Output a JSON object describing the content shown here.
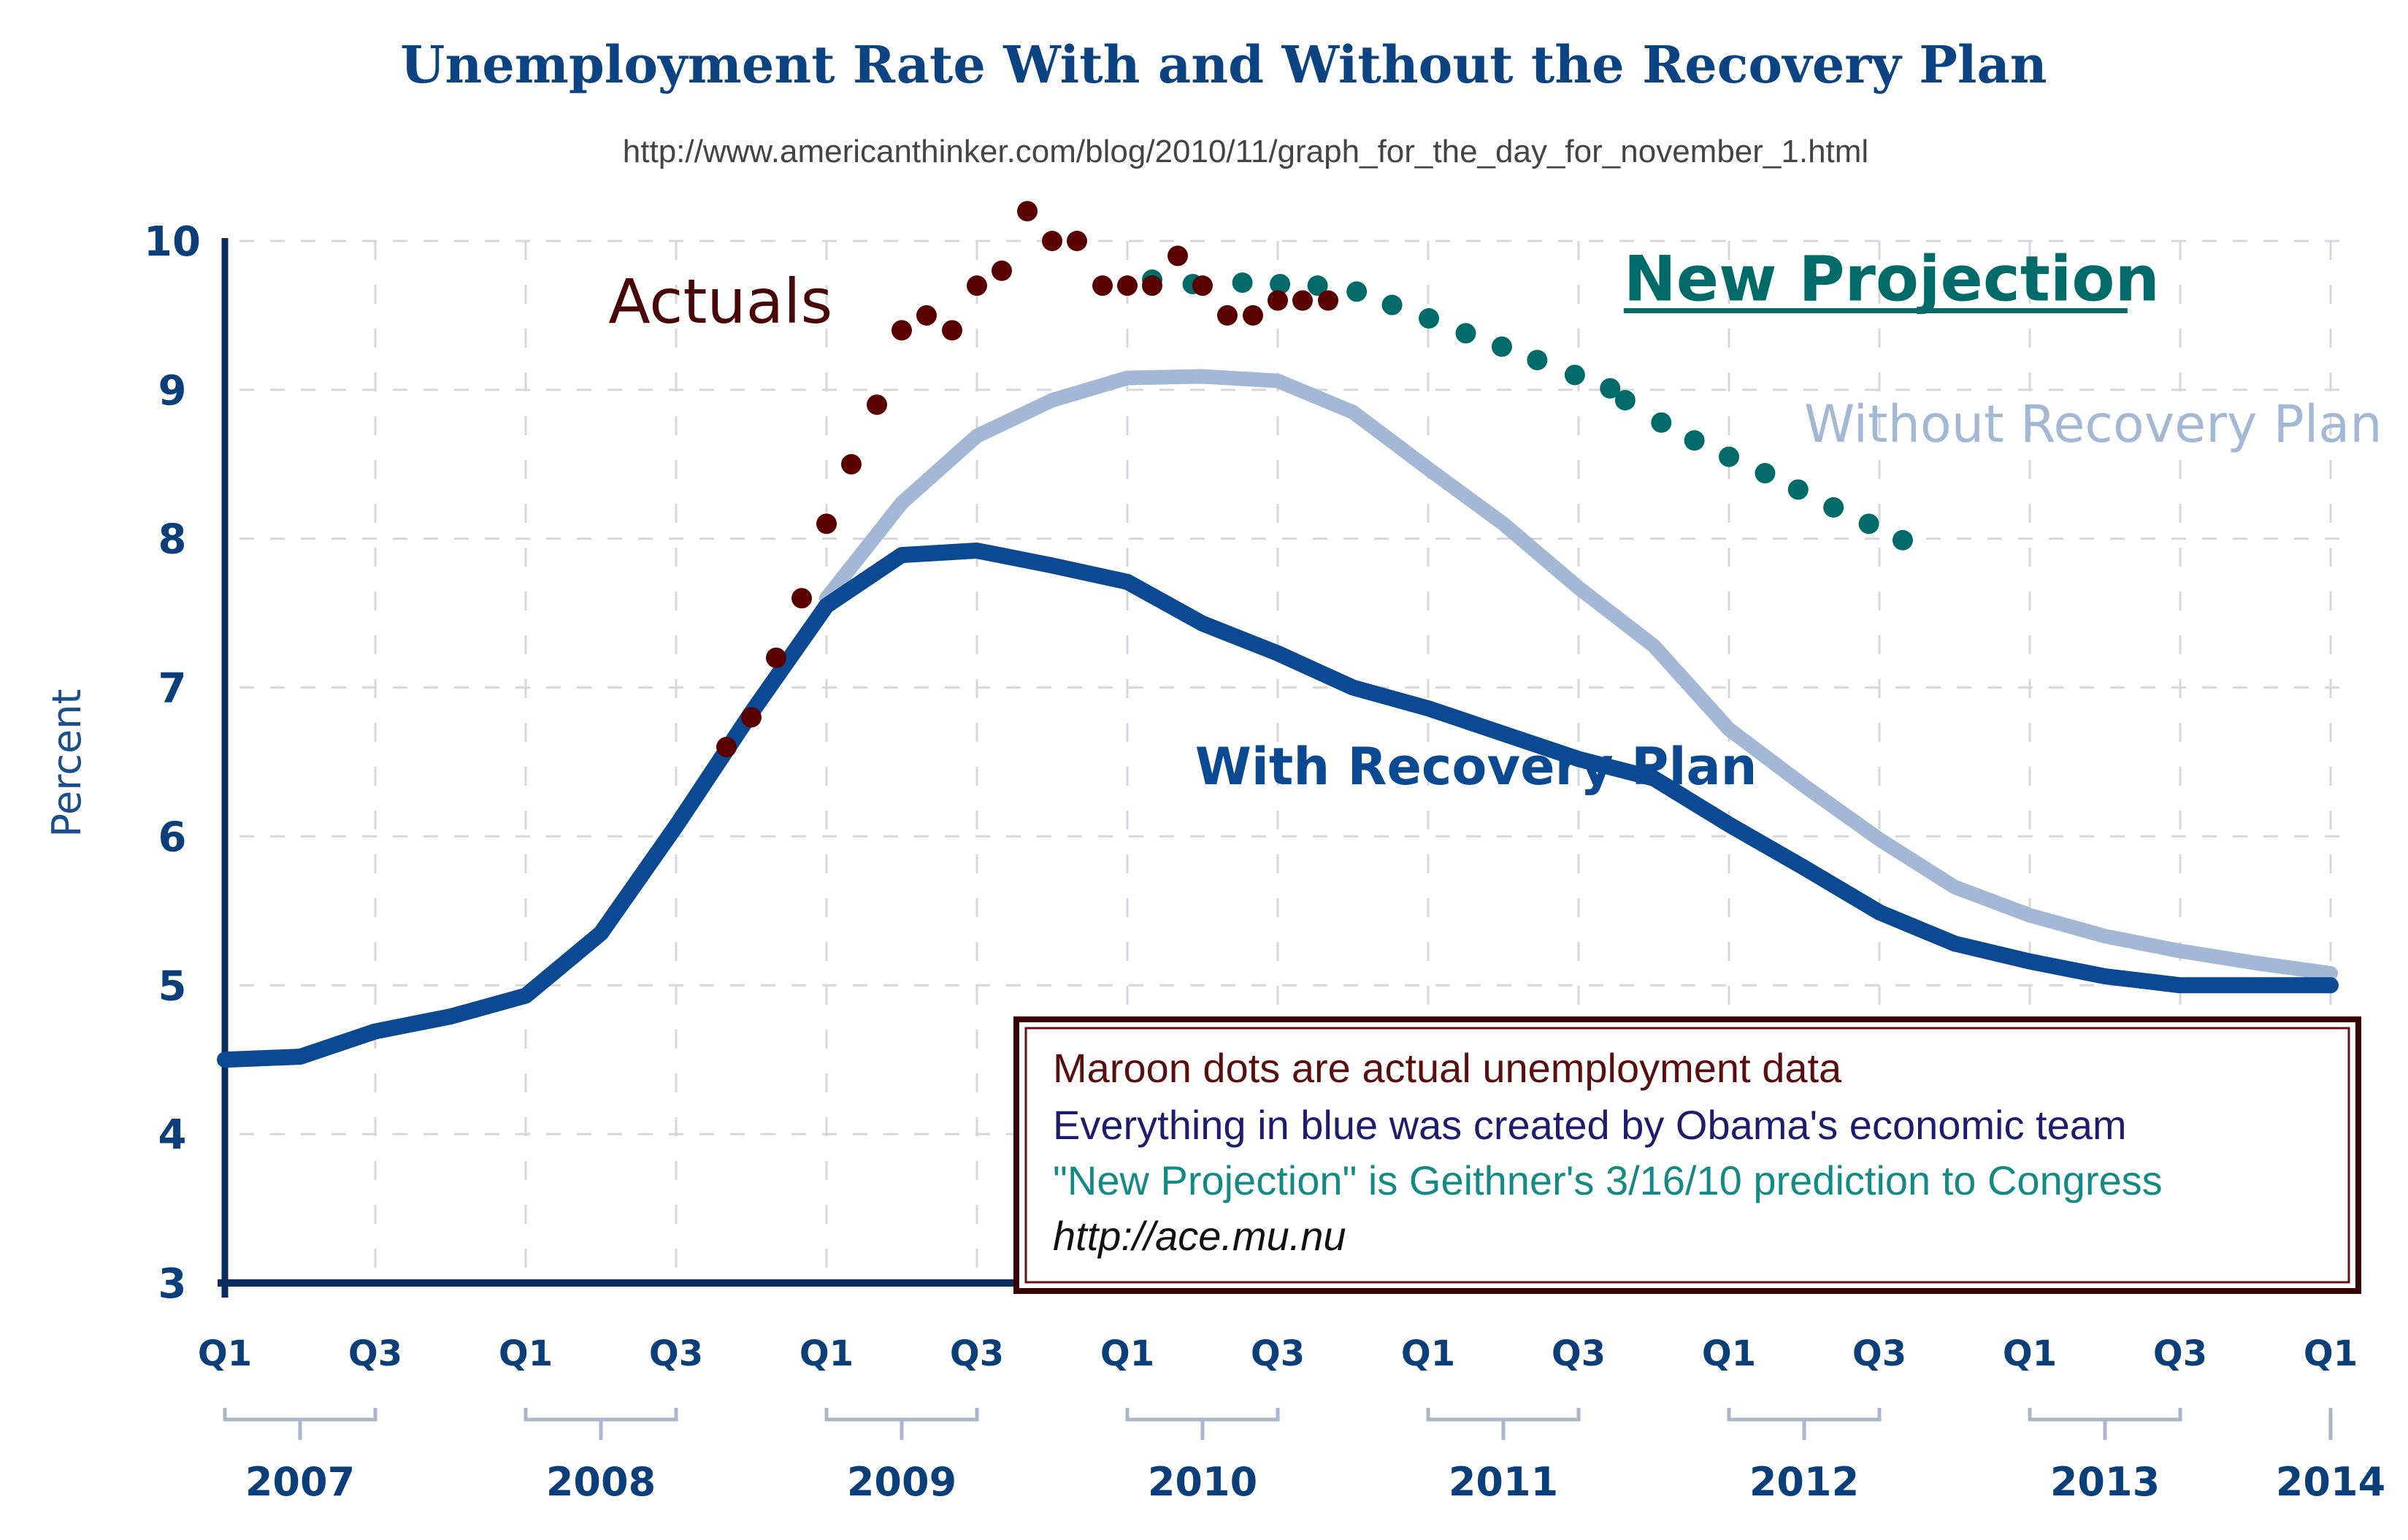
{
  "chart_data": {
    "type": "line",
    "title": "Unemployment Rate With and Without the Recovery Plan",
    "subtitle": "http://www.americanthinker.com/blog/2010/11/graph_for_the_day_for_november_1.html",
    "ylabel": "Percent",
    "xlabel": "",
    "ylim": [
      3,
      10
    ],
    "yticks": [
      3,
      4,
      5,
      6,
      7,
      8,
      9,
      10
    ],
    "x_unit": "quarters since Q1 2007",
    "xlim": [
      0,
      28
    ],
    "grid": true,
    "quarter_ticks": [
      {
        "q": 0,
        "label": "Q1"
      },
      {
        "q": 2,
        "label": "Q3"
      },
      {
        "q": 4,
        "label": "Q1"
      },
      {
        "q": 6,
        "label": "Q3"
      },
      {
        "q": 8,
        "label": "Q1"
      },
      {
        "q": 10,
        "label": "Q3"
      },
      {
        "q": 12,
        "label": "Q1"
      },
      {
        "q": 14,
        "label": "Q3"
      },
      {
        "q": 16,
        "label": "Q1"
      },
      {
        "q": 18,
        "label": "Q3"
      },
      {
        "q": 20,
        "label": "Q1"
      },
      {
        "q": 22,
        "label": "Q3"
      },
      {
        "q": 24,
        "label": "Q1"
      },
      {
        "q": 26,
        "label": "Q3"
      },
      {
        "q": 28,
        "label": "Q1"
      }
    ],
    "year_labels": [
      {
        "from": 0,
        "to": 2,
        "label": "2007"
      },
      {
        "from": 4,
        "to": 6,
        "label": "2008"
      },
      {
        "from": 8,
        "to": 10,
        "label": "2009"
      },
      {
        "from": 12,
        "to": 14,
        "label": "2010"
      },
      {
        "from": 16,
        "to": 18,
        "label": "2011"
      },
      {
        "from": 20,
        "to": 22,
        "label": "2012"
      },
      {
        "from": 24,
        "to": 26,
        "label": "2013"
      },
      {
        "from": 28,
        "to": 28,
        "label": "2014"
      }
    ],
    "series": [
      {
        "name": "Without Recovery Plan",
        "style": "line",
        "color": "#a3b8d4",
        "label": "Without Recovery Plan",
        "label_at": {
          "q": 21,
          "y": 8.65
        },
        "x": [
          8,
          9,
          10,
          11,
          12,
          13,
          14,
          15,
          16,
          17,
          18,
          19,
          20,
          21,
          22,
          23,
          24,
          25,
          26,
          27,
          28
        ],
        "values": [
          7.6,
          8.24,
          8.69,
          8.93,
          9.08,
          9.09,
          9.06,
          8.85,
          8.47,
          8.1,
          7.67,
          7.28,
          6.72,
          6.34,
          5.98,
          5.66,
          5.47,
          5.33,
          5.23,
          5.15,
          5.08
        ]
      },
      {
        "name": "With Recovery Plan",
        "style": "line",
        "color": "#0b4a92",
        "label": "With Recovery Plan",
        "label_at": {
          "q": 12.9,
          "y": 6.35
        },
        "x": [
          0,
          1,
          2,
          3,
          4,
          5,
          6,
          7,
          8,
          9,
          10,
          11,
          12,
          13,
          14,
          15,
          16,
          17,
          18,
          19,
          20,
          21,
          22,
          23,
          24,
          25,
          26,
          27,
          28
        ],
        "values": [
          4.5,
          4.52,
          4.69,
          4.79,
          4.93,
          5.35,
          6.07,
          6.83,
          7.55,
          7.89,
          7.92,
          7.82,
          7.71,
          7.43,
          7.23,
          7.0,
          6.86,
          6.69,
          6.52,
          6.39,
          6.08,
          5.79,
          5.49,
          5.28,
          5.16,
          5.06,
          5.0,
          5.0,
          5.0
        ]
      },
      {
        "name": "New Projection",
        "style": "dots",
        "color": "#006b68",
        "label": "New Projection",
        "label_at": {
          "q": 18.6,
          "y": 9.6
        },
        "x": [
          12.33,
          12.87,
          13.53,
          14.03,
          14.53,
          15.05,
          15.52,
          16.01,
          16.5,
          16.98,
          17.45,
          17.95,
          18.42,
          18.62,
          19.1,
          19.54,
          20.0,
          20.48,
          20.92,
          21.39,
          21.86,
          22.31
        ],
        "values": [
          9.74,
          9.71,
          9.72,
          9.71,
          9.7,
          9.66,
          9.57,
          9.48,
          9.38,
          9.29,
          9.2,
          9.1,
          9.01,
          8.93,
          8.78,
          8.66,
          8.55,
          8.44,
          8.33,
          8.21,
          8.1,
          7.99
        ]
      },
      {
        "name": "Actuals",
        "style": "dots",
        "color": "#5a0000",
        "label": "Actuals",
        "label_at": {
          "q": 5.1,
          "y": 9.45
        },
        "x": [
          6.67,
          7.0,
          7.33,
          7.67,
          8.0,
          8.33,
          8.67,
          9.0,
          9.33,
          9.67,
          10.0,
          10.33,
          10.67,
          11.0,
          11.33,
          11.67,
          12.0,
          12.33,
          12.67,
          13.0,
          13.33,
          13.67,
          14.0,
          14.33,
          14.67
        ],
        "values": [
          6.6,
          6.8,
          7.2,
          7.6,
          8.1,
          8.5,
          8.9,
          9.4,
          9.5,
          9.4,
          9.7,
          9.8,
          10.2,
          10.0,
          10.0,
          9.7,
          9.7,
          9.7,
          9.9,
          9.7,
          9.5,
          9.5,
          9.6,
          9.6,
          9.6
        ]
      }
    ]
  },
  "note_box": {
    "lines": [
      {
        "text": "Maroon dots are actual unemployment data",
        "color": "#5a0f0f",
        "italic": false
      },
      {
        "text": "Everything in blue was created by Obama's economic team",
        "color": "#1d1d6e",
        "italic": false
      },
      {
        "text": "\"New Projection\" is Geithner's 3/16/10 prediction to Congress",
        "color": "#138a85",
        "italic": false
      },
      {
        "text": "http://ace.mu.nu",
        "color": "#111111",
        "italic": true
      }
    ],
    "border_color": "#4a0000"
  }
}
